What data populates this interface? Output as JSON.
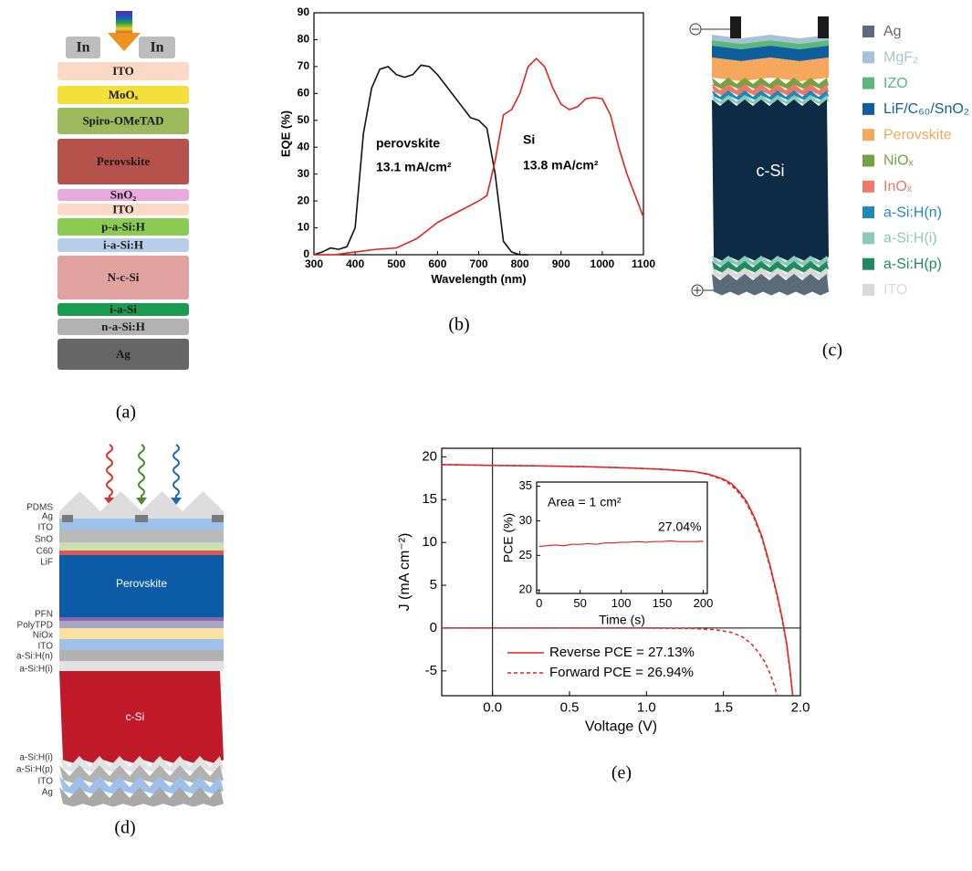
{
  "panel_a": {
    "panel_label": "(a)",
    "in_labels": [
      "In",
      "In"
    ],
    "layers": [
      {
        "label": "ITO",
        "color": "#fcd9c6"
      },
      {
        "label": "MoOₓ",
        "color": "#f5df3a"
      },
      {
        "label": "Spiro-OMeTAD",
        "color": "#9cb95c"
      },
      {
        "label": "Perovskite",
        "color": "#b6524c"
      },
      {
        "label": "SnO₂",
        "color": "#e9a9db"
      },
      {
        "label": "ITO",
        "color": "#fcd9c6"
      },
      {
        "label": "p-a-Si:H",
        "color": "#8ccb52"
      },
      {
        "label": "i-a-Si:H",
        "color": "#b9cde9"
      },
      {
        "label": "N-c-Si",
        "color": "#e1a1a1"
      },
      {
        "label": "i-a-Si",
        "color": "#1b9b52"
      },
      {
        "label": "n-a-Si:H",
        "color": "#b2b2b2"
      },
      {
        "label": "Ag",
        "color": "#666666"
      }
    ]
  },
  "panel_b": {
    "panel_label": "(b)"
  },
  "panel_c": {
    "panel_label": "(c)",
    "body_label": "c-Si",
    "legend": [
      {
        "label": "Ag",
        "color": "#5b6b79"
      },
      {
        "label": "MgF₂",
        "color": "#a9c0d9"
      },
      {
        "label": "IZO",
        "color": "#5cb87b"
      },
      {
        "label": "LiF/C₆₀/SnO₂",
        "color": "#0f5f9f"
      },
      {
        "label": "Perovskite",
        "color": "#f6a75c"
      },
      {
        "label": "NiOₓ",
        "color": "#78a141"
      },
      {
        "label": "InOₓ",
        "color": "#ef7868"
      },
      {
        "label": "a-Si:H(n)",
        "color": "#1e88b8"
      },
      {
        "label": "a-Si:H(i)",
        "color": "#89c9b8"
      },
      {
        "label": "a-Si:H(p)",
        "color": "#208961"
      },
      {
        "label": "ITO",
        "color": "#d9d9d9"
      }
    ]
  },
  "panel_d": {
    "panel_label": "(d)",
    "side_labels": [
      "PDMS",
      "Ag",
      "ITO",
      "SnO",
      "C60",
      "LiF",
      "PFN",
      "PolyTPD",
      "NiOx",
      "ITO",
      "a-Si:H(n)",
      "a-Si:H(i)",
      "a-Si:H(i)",
      "a-Si:H(p)",
      "ITO",
      "Ag"
    ],
    "inner_labels": [
      "Perovskite",
      "c-Si"
    ]
  },
  "panel_e": {
    "panel_label": "(e)"
  },
  "chart_data": [
    {
      "type": "line",
      "x_label": "Wavelength (nm)",
      "y_label": "EQE (%)",
      "xlim": [
        300,
        1100
      ],
      "ylim": [
        0,
        90
      ],
      "xticks": [
        300,
        400,
        500,
        600,
        700,
        800,
        900,
        1000,
        1100
      ],
      "yticks": [
        0,
        10,
        20,
        30,
        40,
        50,
        60,
        70,
        80,
        90
      ],
      "series": [
        {
          "name": "perovskite",
          "color": "#111111",
          "x": [
            300,
            320,
            340,
            360,
            380,
            400,
            420,
            440,
            460,
            480,
            500,
            520,
            540,
            560,
            580,
            600,
            620,
            640,
            660,
            680,
            700,
            720,
            740,
            760,
            780,
            800,
            820
          ],
          "values": [
            0,
            1,
            2.5,
            2,
            3,
            10,
            45,
            62,
            69,
            70,
            67,
            66,
            67,
            70.5,
            70,
            67,
            63,
            59,
            55,
            51,
            50,
            47,
            30,
            5,
            1,
            0,
            0
          ]
        },
        {
          "name": "Si",
          "color": "#e3221e",
          "x": [
            300,
            350,
            400,
            450,
            500,
            550,
            600,
            650,
            700,
            720,
            740,
            760,
            780,
            800,
            820,
            840,
            860,
            880,
            900,
            920,
            940,
            960,
            980,
            1000,
            1020,
            1040,
            1060,
            1080,
            1100
          ],
          "values": [
            0,
            0,
            1,
            2,
            2.5,
            6,
            12,
            16,
            20,
            22,
            35,
            52,
            54,
            60,
            70,
            73,
            70,
            62,
            56,
            54,
            55,
            58,
            58.5,
            58,
            52,
            40,
            30,
            22,
            14
          ]
        }
      ],
      "annotations": [
        "13.1 mA/cm²",
        "13.8 mA/cm²"
      ]
    },
    {
      "type": "line",
      "x_label": "Voltage (V)",
      "y_label": "J (mA cm⁻²)",
      "xlim": [
        -0.33,
        2.0
      ],
      "ylim": [
        -7.9,
        21
      ],
      "xticks": [
        {
          "value": 0,
          "label": "0.0"
        },
        0.5,
        {
          "value": 1,
          "label": "1.0"
        },
        1.5,
        {
          "value": 2,
          "label": "2.0"
        }
      ],
      "yticks": [
        -5,
        0,
        5,
        10,
        15,
        20
      ],
      "legend": "lower left",
      "series": [
        {
          "name": "Reverse PCE = 27.13%",
          "color": "#e3221e",
          "style": "solid",
          "x": [
            -0.33,
            0,
            0.3,
            0.6,
            0.9,
            1.1,
            1.3,
            1.4,
            1.5,
            1.55,
            1.6,
            1.65,
            1.7,
            1.75,
            1.8,
            1.85,
            1.88,
            1.91,
            1.93,
            1.95
          ],
          "values": [
            19.1,
            19.0,
            18.95,
            18.85,
            18.7,
            18.55,
            18.3,
            18.0,
            17.4,
            16.9,
            16.0,
            14.8,
            13.0,
            10.7,
            7.5,
            3.8,
            1.3,
            -1.7,
            -4.5,
            -7.9
          ]
        },
        {
          "name": "Forward PCE = 26.94%",
          "color": "#e3221e",
          "style": "dashed",
          "x": [
            -0.33,
            0,
            0.3,
            0.6,
            0.9,
            1.1,
            1.3,
            1.4,
            1.5,
            1.55,
            1.6,
            1.65,
            1.7,
            1.75,
            1.8,
            1.85,
            1.88,
            1.91,
            1.93,
            1.95
          ],
          "values": [
            19.1,
            19.0,
            18.95,
            18.85,
            18.7,
            18.55,
            18.3,
            17.95,
            17.3,
            16.7,
            15.8,
            14.6,
            12.8,
            10.5,
            7.3,
            3.6,
            1.1,
            -1.9,
            -4.7,
            -7.9
          ]
        },
        {
          "color": "#e3221e",
          "style": "dashed",
          "x": [
            -0.33,
            0.5,
            1.0,
            1.3,
            1.45,
            1.55,
            1.62,
            1.68,
            1.73,
            1.77,
            1.8,
            1.83,
            1.85
          ],
          "values": [
            0,
            0,
            0,
            -0.05,
            -0.2,
            -0.5,
            -1.0,
            -1.8,
            -2.9,
            -4.0,
            -5.2,
            -6.7,
            -7.9
          ]
        }
      ]
    },
    {
      "type": "line",
      "x_label": "Time (s)",
      "y_label": "PCE (%)",
      "xlim": [
        -3,
        205
      ],
      "ylim": [
        19.5,
        35.6
      ],
      "xticks": [
        0,
        50,
        100,
        150,
        200
      ],
      "yticks": [
        20,
        25,
        30,
        35
      ],
      "series": [
        {
          "color": "#e3221e",
          "style": "solid",
          "x": [
            0,
            10,
            20,
            30,
            40,
            50,
            60,
            70,
            80,
            90,
            100,
            110,
            120,
            130,
            140,
            150,
            160,
            170,
            180,
            190,
            200
          ],
          "values": [
            26.3,
            26.4,
            26.5,
            26.4,
            26.6,
            26.6,
            26.7,
            26.6,
            26.8,
            26.8,
            26.9,
            26.9,
            27.0,
            26.9,
            27.0,
            27.0,
            27.1,
            27.0,
            27.0,
            27.0,
            27.04
          ]
        }
      ],
      "annotations": [
        "Area = 1 cm²",
        "27.04%"
      ]
    }
  ]
}
